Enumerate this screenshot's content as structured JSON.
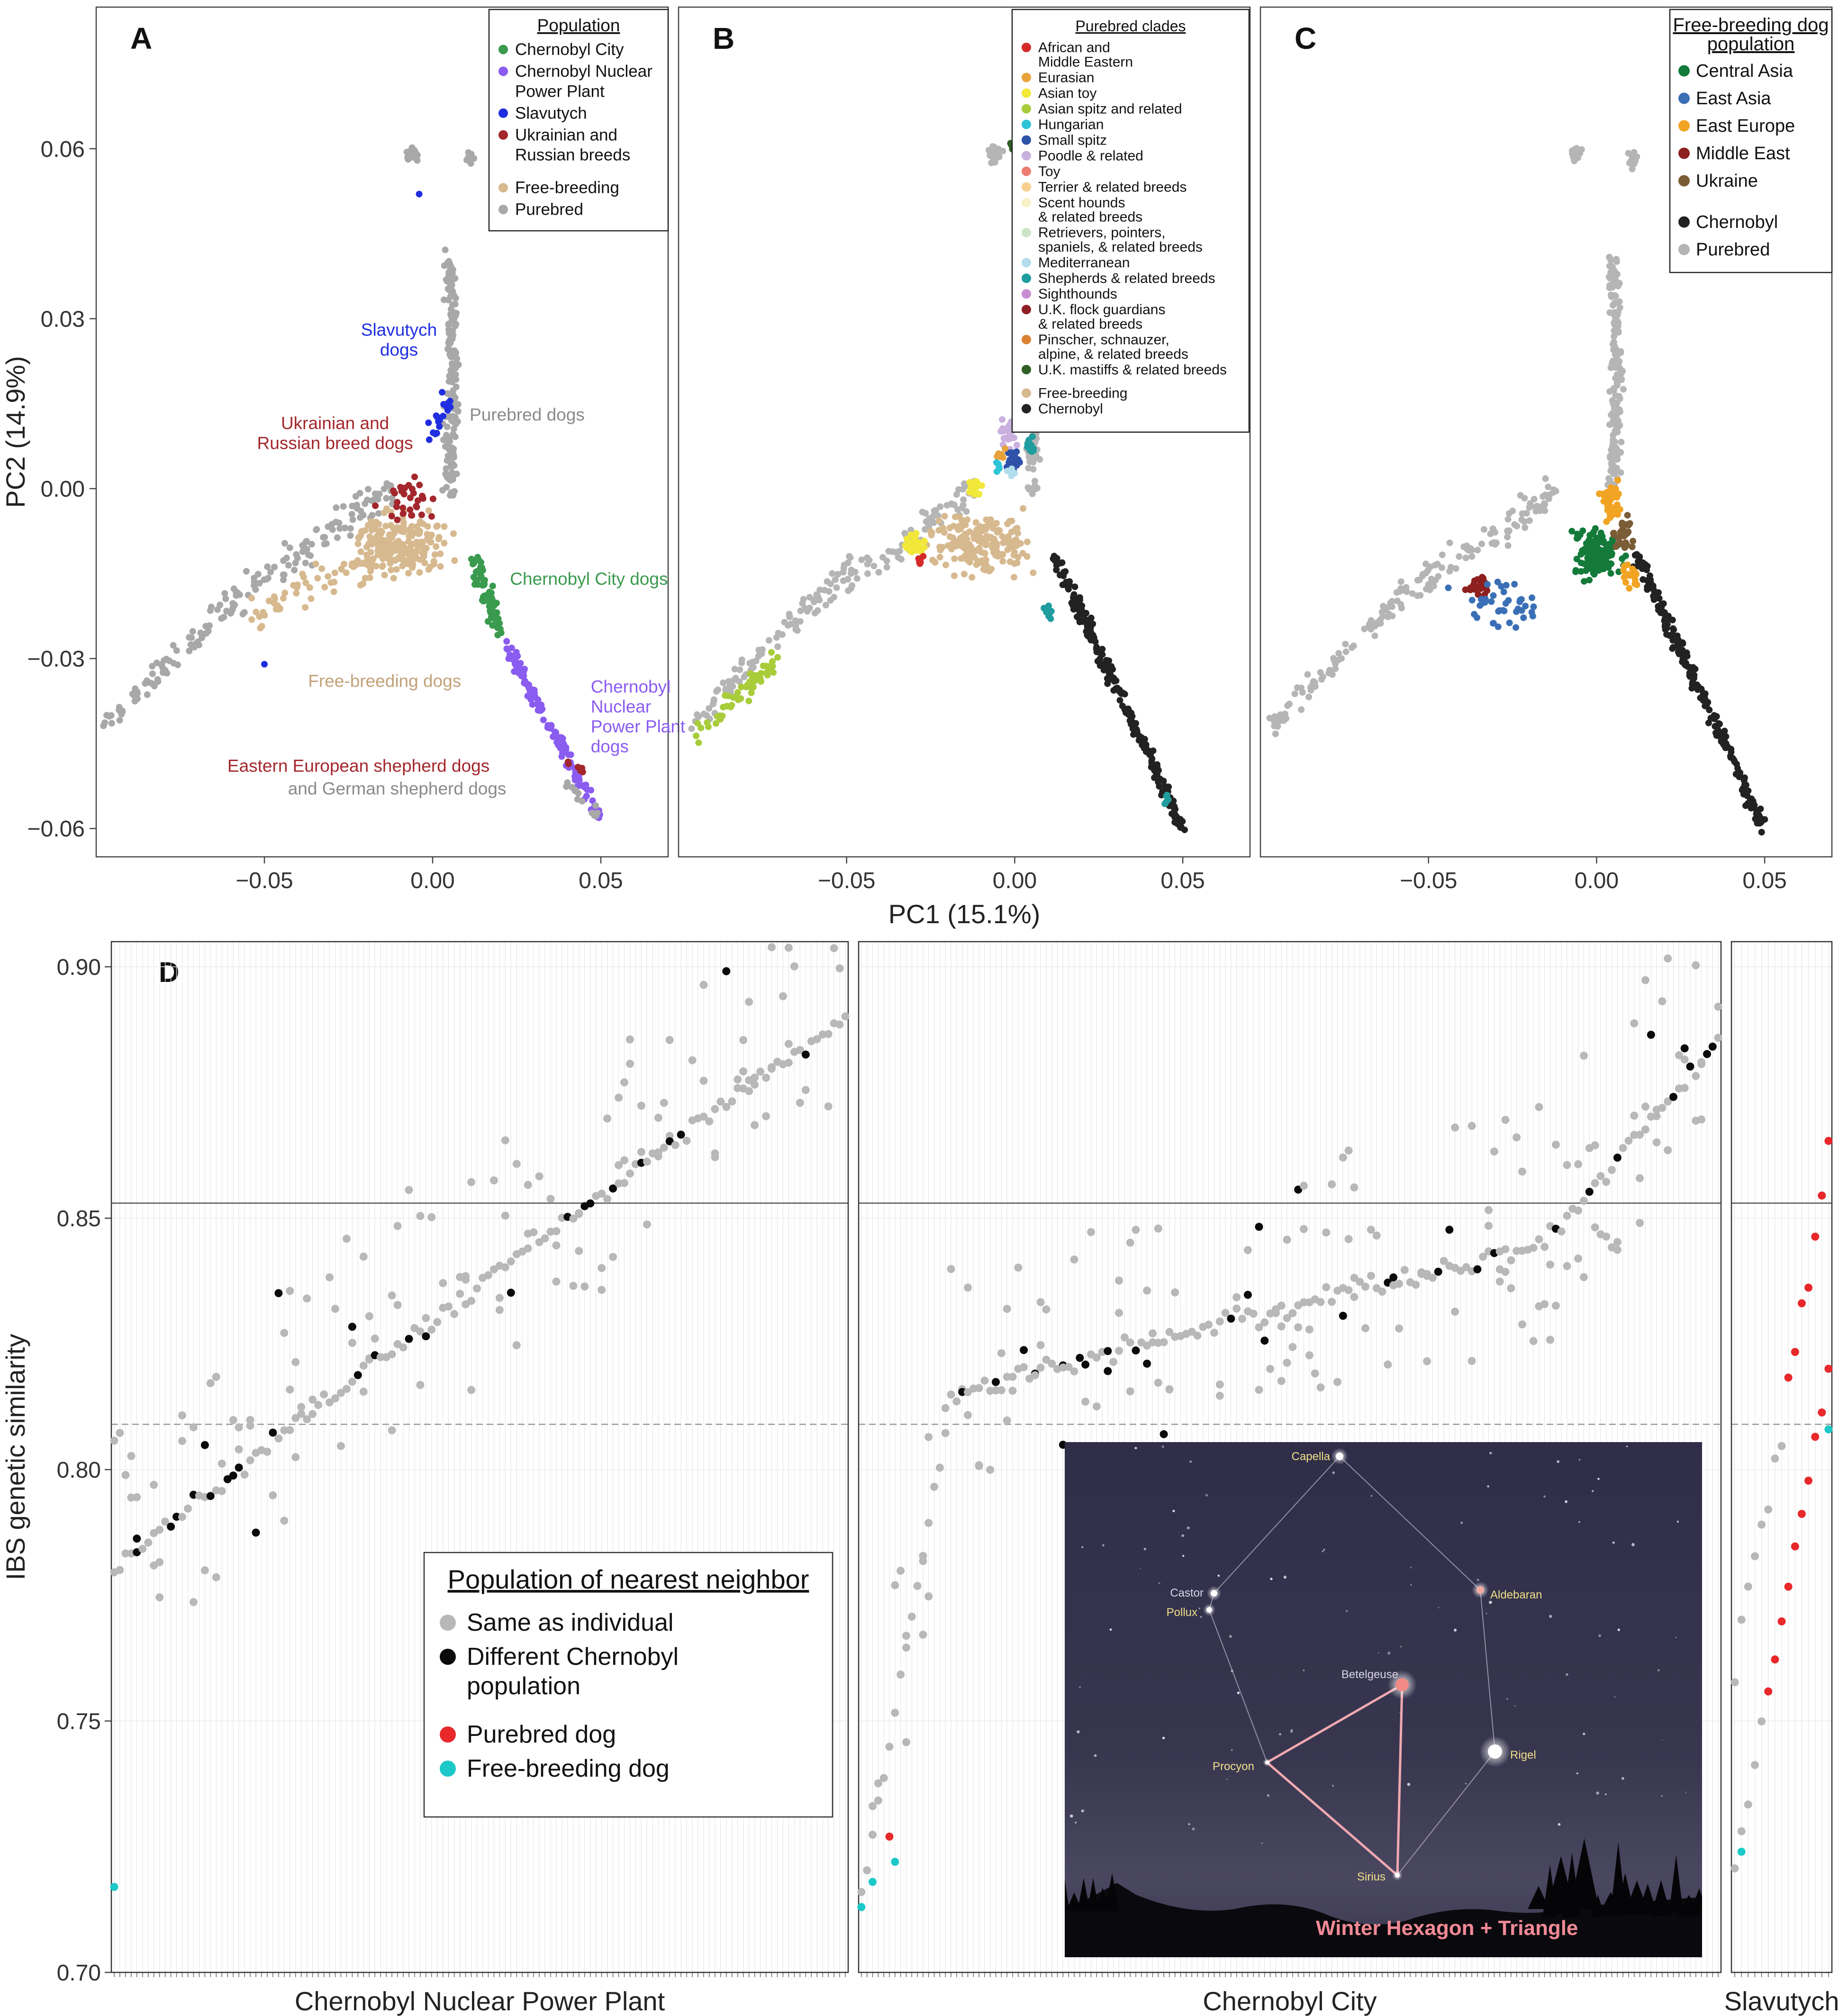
{
  "chart_data": [
    {
      "type": "scatter",
      "panel_letter": "A",
      "xlabel": "",
      "ylabel": "PC2 (14.9%)",
      "xlim": [
        -0.1,
        0.07
      ],
      "ylim": [
        -0.065,
        0.085
      ],
      "xticks": [
        -0.05,
        0.0,
        0.05
      ],
      "xtick_labels": [
        "−0.05",
        "0.00",
        "0.05"
      ],
      "yticks": [
        -0.06,
        -0.03,
        0.0,
        0.03,
        0.06
      ],
      "ytick_labels": [
        "−0.06",
        "−0.03",
        "0.00",
        "0.03",
        "0.06"
      ],
      "legend": {
        "title": "Population",
        "placement": "top-right",
        "entries": [
          {
            "label": "Chernobyl City",
            "color": "#3a9a4e"
          },
          {
            "label": "Chernobyl Nuclear Power Plant",
            "lines": [
              "Chernobyl Nuclear",
              "Power Plant"
            ],
            "color": "#8a5cf0"
          },
          {
            "label": "Slavutych",
            "color": "#1f2ee0"
          },
          {
            "label": "Ukrainian and Russian breeds",
            "lines": [
              "Ukrainian and",
              "Russian breeds"
            ],
            "color": "#a3272c"
          },
          {
            "label": "Free-breeding",
            "color": "#d7b98f",
            "gap": true
          },
          {
            "label": "Purebred",
            "color": "#a8a8a8"
          }
        ]
      },
      "annotations": [
        {
          "lines": [
            "Slavutych",
            "dogs"
          ],
          "x": -0.01,
          "y": 0.027,
          "color": "#1f2ee0",
          "align": "middle"
        },
        {
          "lines": [
            "Purebred dogs"
          ],
          "x": 0.011,
          "y": 0.012,
          "color": "#8a8a8a",
          "align": "start"
        },
        {
          "lines": [
            "Ukrainian and",
            "Russian breed dogs"
          ],
          "x": -0.029,
          "y": 0.0105,
          "color": "#a3272c",
          "align": "middle"
        },
        {
          "lines": [
            "Chernobyl City dogs"
          ],
          "x": 0.023,
          "y": -0.017,
          "color": "#3a9a4e",
          "align": "start"
        },
        {
          "lines": [
            "Free-breeding dogs"
          ],
          "x": -0.037,
          "y": -0.035,
          "color": "#c2a27a",
          "align": "start"
        },
        {
          "lines": [
            "Chernobyl",
            "Nuclear",
            "Power Plant",
            "dogs"
          ],
          "x": 0.047,
          "y": -0.036,
          "color": "#8a5cf0",
          "align": "start"
        },
        {
          "lines": [
            "Eastern European shepherd dogs"
          ],
          "x": -0.061,
          "y": -0.05,
          "color": "#a3272c",
          "align": "start"
        },
        {
          "lines": [
            "and German shepherd dogs"
          ],
          "x": -0.043,
          "y": -0.054,
          "color": "#8a8a8a",
          "align": "start"
        }
      ]
    },
    {
      "type": "scatter",
      "panel_letter": "B",
      "xlabel": "PC1 (15.1%)",
      "ylabel": "",
      "xlim": [
        -0.1,
        0.07
      ],
      "ylim": [
        -0.065,
        0.085
      ],
      "xticks": [
        -0.05,
        0.0,
        0.05
      ],
      "xtick_labels": [
        "−0.05",
        "0.00",
        "0.05"
      ],
      "yticks": [],
      "ytick_labels": [],
      "legend": {
        "title": "Purebred clades",
        "placement": "top-right",
        "entries": [
          {
            "label": "African and Middle Eastern",
            "lines": [
              "African and",
              "Middle Eastern"
            ],
            "color": "#d42a2a"
          },
          {
            "label": "Eurasian",
            "color": "#e8a23c"
          },
          {
            "label": "Asian toy",
            "color": "#f1e83a"
          },
          {
            "label": "Asian spitz and related",
            "color": "#a8cc3a"
          },
          {
            "label": "Hungarian",
            "color": "#2ec4d8"
          },
          {
            "label": "Small spitz",
            "color": "#2e52a8"
          },
          {
            "label": "Poodle & related",
            "color": "#c9b0de"
          },
          {
            "label": "Toy",
            "color": "#ee7b72"
          },
          {
            "label": "Terrier & related breeds",
            "color": "#f6cf90"
          },
          {
            "label": "Scent hounds & related breeds",
            "lines": [
              "Scent hounds",
              "& related breeds"
            ],
            "color": "#f8f1c8"
          },
          {
            "label": "Retrievers, pointers, spaniels, & related breeds",
            "lines": [
              "Retrievers, pointers,",
              "spaniels, & related breeds"
            ],
            "color": "#cde5c7"
          },
          {
            "label": "Mediterranean",
            "color": "#b2ddec"
          },
          {
            "label": "Shepherds & related breeds",
            "color": "#1f9c9e"
          },
          {
            "label": "Sighthounds",
            "color": "#c88ed2"
          },
          {
            "label": "U.K. flock guardians & related breeds",
            "lines": [
              "U.K. flock guardians",
              "& related breeds"
            ],
            "color": "#8e1f22"
          },
          {
            "label": "Pinscher, schnauzer, alpine, & related breeds",
            "lines": [
              "Pinscher, schnauzer,",
              " alpine, & related breeds"
            ],
            "color": "#d98232"
          },
          {
            "label": "U.K. mastiffs & related breeds",
            "color": "#2e5f24"
          },
          {
            "label": "Free-breeding",
            "color": "#d7b98f",
            "gap": true
          },
          {
            "label": "Chernobyl",
            "color": "#222222"
          }
        ]
      },
      "annotations": []
    },
    {
      "type": "scatter",
      "panel_letter": "C",
      "xlabel": "",
      "ylabel": "",
      "xlim": [
        -0.1,
        0.07
      ],
      "ylim": [
        -0.065,
        0.085
      ],
      "xticks": [
        -0.05,
        0.0,
        0.05
      ],
      "xtick_labels": [
        "−0.05",
        "0.00",
        "0.05"
      ],
      "yticks": [],
      "ytick_labels": [],
      "legend": {
        "title": "Free-breeding dog population",
        "title_lines": [
          "Free-breeding dog",
          "population"
        ],
        "placement": "top-right",
        "entries": [
          {
            "label": "Central Asia",
            "color": "#137a3a"
          },
          {
            "label": "East Asia",
            "color": "#3a6fb6"
          },
          {
            "label": "East Europe",
            "color": "#f1a423"
          },
          {
            "label": "Middle East",
            "color": "#8e1f1f"
          },
          {
            "label": "Ukraine",
            "color": "#7a5c36"
          },
          {
            "label": "Chernobyl",
            "color": "#222222",
            "gap": true
          },
          {
            "label": "Purebred",
            "color": "#b5b5b5"
          }
        ]
      },
      "annotations": []
    },
    {
      "type": "scatter",
      "panel_letter": "D",
      "ylabel": "IBS genetic similarity",
      "ylim": [
        0.7,
        0.905
      ],
      "yticks": [
        0.7,
        0.75,
        0.8,
        0.85,
        0.9
      ],
      "ytick_labels": [
        "0.70",
        "0.75",
        "0.80",
        "0.85",
        "0.90"
      ],
      "hlines": [
        {
          "y": 0.853,
          "style": "solid"
        },
        {
          "y": 0.809,
          "style": "dashed"
        }
      ],
      "facets": [
        {
          "label": "Chernobyl Nuclear Power Plant",
          "n": 130
        },
        {
          "label": "Chernobyl City",
          "n": 154
        },
        {
          "label": "Slavutych",
          "n": 15
        }
      ],
      "legend": {
        "title": "Population of nearest neighbor",
        "placement": "bottom-left",
        "entries": [
          {
            "label": "Same as individual",
            "color": "#b8b8b8"
          },
          {
            "label": "Different Chernobyl population",
            "lines": [
              "Different Chernobyl",
              " population"
            ],
            "color": "#0a0a0a"
          },
          {
            "label": "Purebred dog",
            "color": "#e8282a",
            "gap": true
          },
          {
            "label": "Free-breeding dog",
            "color": "#1cc8c8"
          }
        ]
      }
    }
  ],
  "inset": {
    "caption": "Winter Hexagon + Triangle",
    "stars": [
      {
        "name": "Capella",
        "color": "#ffffff"
      },
      {
        "name": "Aldebaran",
        "color": "#f4a9a0"
      },
      {
        "name": "Castor",
        "color": "#ffffff"
      },
      {
        "name": "Pollux",
        "color": "#ffffff"
      },
      {
        "name": "Betelgeuse",
        "color": "#f28a86"
      },
      {
        "name": "Procyon",
        "color": "#ffffff"
      },
      {
        "name": "Rigel",
        "color": "#ffffff"
      },
      {
        "name": "Sirius",
        "color": "#ffffff"
      }
    ]
  }
}
